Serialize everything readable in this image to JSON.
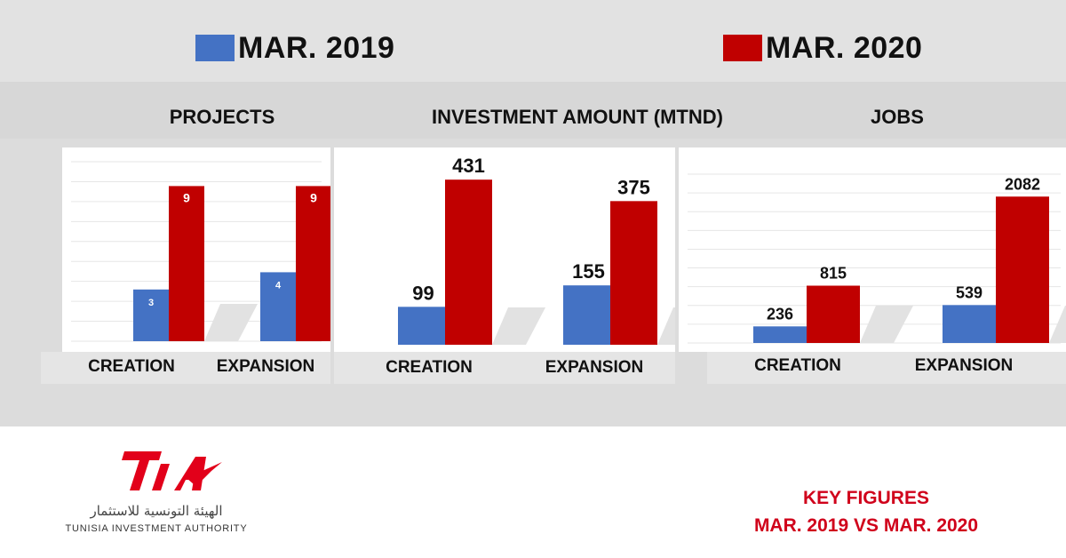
{
  "colors": {
    "mar2019": "#4472c4",
    "mar2020": "#c00000",
    "footer": "#d0021b",
    "logo": "#e2001a"
  },
  "legend": [
    {
      "label": "MAR. 2019",
      "color": "#4472c4"
    },
    {
      "label": "MAR. 2020",
      "color": "#c00000"
    }
  ],
  "chart_data": [
    {
      "type": "bar",
      "title": "PROJECTS",
      "categories": [
        "CREATION",
        "EXPANSION"
      ],
      "series": [
        {
          "name": "MAR. 2019",
          "values": [
            3,
            4
          ]
        },
        {
          "name": "MAR. 2020",
          "values": [
            9,
            9
          ]
        }
      ],
      "ylim": [
        0,
        10
      ],
      "grid": true,
      "legend_position": "top"
    },
    {
      "type": "bar",
      "title": "INVESTMENT AMOUNT (MTND)",
      "categories": [
        "CREATION",
        "EXPANSION"
      ],
      "series": [
        {
          "name": "MAR. 2019",
          "values": [
            99,
            155
          ]
        },
        {
          "name": "MAR. 2020",
          "values": [
            431,
            375
          ]
        }
      ],
      "ylim": [
        0,
        450
      ],
      "grid": true,
      "legend_position": "top"
    },
    {
      "type": "bar",
      "title": "JOBS",
      "categories": [
        "CREATION",
        "EXPANSION"
      ],
      "series": [
        {
          "name": "MAR. 2019",
          "values": [
            236,
            539
          ]
        },
        {
          "name": "MAR. 2020",
          "values": [
            815,
            2082
          ]
        }
      ],
      "ylim": [
        0,
        2300
      ],
      "grid": true,
      "legend_position": "top"
    }
  ],
  "logo": {
    "mark": "TIA",
    "arabic": "الهيئة التونسية للاستثمار",
    "english": "TUNISIA INVESTMENT AUTHORITY"
  },
  "footer": {
    "line1": "KEY FIGURES",
    "line2": "MAR. 2019 VS MAR. 2020"
  }
}
